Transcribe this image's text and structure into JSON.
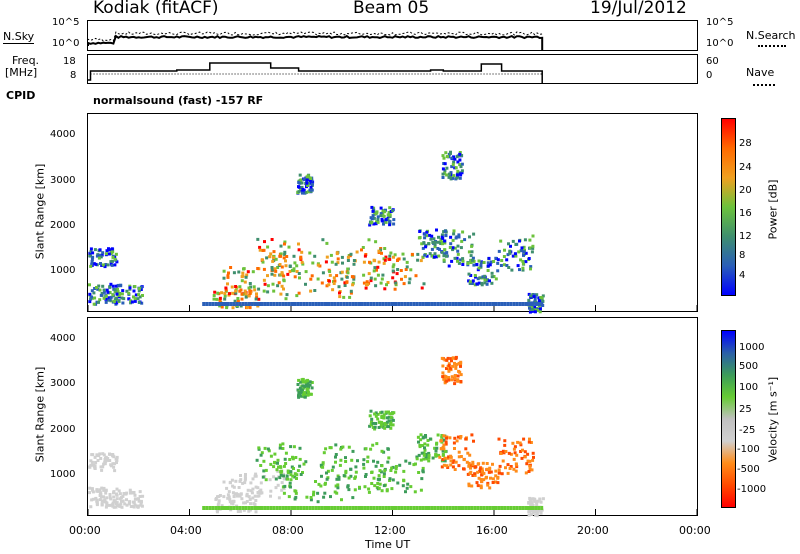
{
  "header": {
    "station": "Kodiak (fitACF)",
    "beam": "Beam 05",
    "date": "19/Jul/2012"
  },
  "strips": {
    "nsky_label": "N.Sky",
    "nsky_ticks": [
      "10^5",
      "10^0"
    ],
    "nsearch_label": "N.Search",
    "nsearch_ticks": [
      "10^5",
      "10^0"
    ],
    "freq_label_1": "Freq.",
    "freq_label_2": "[MHz]",
    "freq_ticks": [
      "18",
      "8"
    ],
    "nave_label": "Nave",
    "nave_ticks": [
      "60",
      "0"
    ],
    "cpid_label": "CPID",
    "cpid_text": "normalsound (fast) -157 RF"
  },
  "colors": {
    "power_scale": [
      "#0000ff",
      "#2a5fb8",
      "#3f8f6e",
      "#6cc23c",
      "#f0a020",
      "#ff6a00",
      "#ff0000"
    ],
    "velocity_scale": [
      "#ff0000",
      "#ff4a00",
      "#ff8c1a",
      "#d0d0d0",
      "#c0c0c0",
      "#66cc33",
      "#3c9c5a",
      "#2a5fa8",
      "#0000ff"
    ]
  },
  "chart_data": [
    {
      "type": "heatmap",
      "name": "power",
      "ylabel": "Slant Range [km]",
      "xlabel": "Time UT",
      "y_ticks": [
        "1000",
        "2000",
        "3000",
        "4000"
      ],
      "ylim": [
        200,
        4500
      ],
      "colorbar_label": "Power [dB]",
      "colorbar_ticks": [
        "4",
        "8",
        "12",
        "16",
        "20",
        "24",
        "28"
      ],
      "clim": [
        0,
        30
      ]
    },
    {
      "type": "heatmap",
      "name": "velocity",
      "ylabel": "Slant Range [km]",
      "xlabel": "Time UT",
      "y_ticks": [
        "1000",
        "2000",
        "3000",
        "4000"
      ],
      "ylim": [
        200,
        4500
      ],
      "colorbar_label": "Velocity [m s⁻¹]",
      "colorbar_ticks": [
        "-1000",
        "-500",
        "-100",
        "-25",
        "25",
        "100",
        "500",
        "1000"
      ],
      "clim": [
        -1000,
        1000
      ]
    }
  ],
  "x_axis": {
    "ticks": [
      "00:00",
      "04:00",
      "08:00",
      "12:00",
      "16:00",
      "20:00",
      "00:00"
    ],
    "label": "Time UT",
    "xlim_hours": [
      0,
      24
    ],
    "data_end_hours": 17.9
  }
}
